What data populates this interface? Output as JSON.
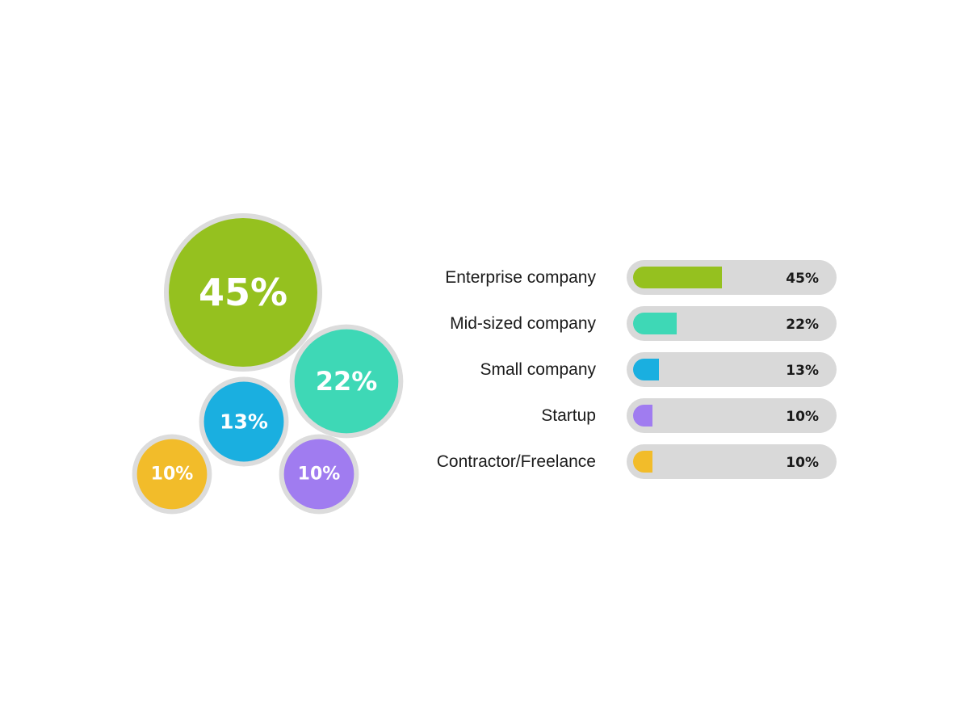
{
  "chart_data": [
    {
      "type": "bubble",
      "categories": [
        "Enterprise company",
        "Mid-sized company",
        "Small company",
        "Startup",
        "Contractor/Freelance"
      ],
      "values": [
        45,
        22,
        13,
        10,
        10
      ],
      "labels": [
        "45%",
        "22%",
        "13%",
        "10%",
        "10%"
      ],
      "colors": [
        "#95c11f",
        "#3ed8b6",
        "#1aafe0",
        "#a07cf0",
        "#f2bc2a"
      ]
    },
    {
      "type": "bar",
      "orientation": "horizontal",
      "categories": [
        "Enterprise company",
        "Mid-sized company",
        "Small company",
        "Startup",
        "Contractor/Freelance"
      ],
      "values": [
        45,
        22,
        13,
        10,
        10
      ],
      "labels": [
        "45%",
        "22%",
        "13%",
        "10%",
        "10%"
      ],
      "colors": [
        "#95c11f",
        "#3ed8b6",
        "#1aafe0",
        "#a07cf0",
        "#f2bc2a"
      ],
      "xlim": [
        0,
        100
      ]
    }
  ],
  "track_color": "#d9d9d9",
  "bubble_border_color": "#dcdcdc"
}
